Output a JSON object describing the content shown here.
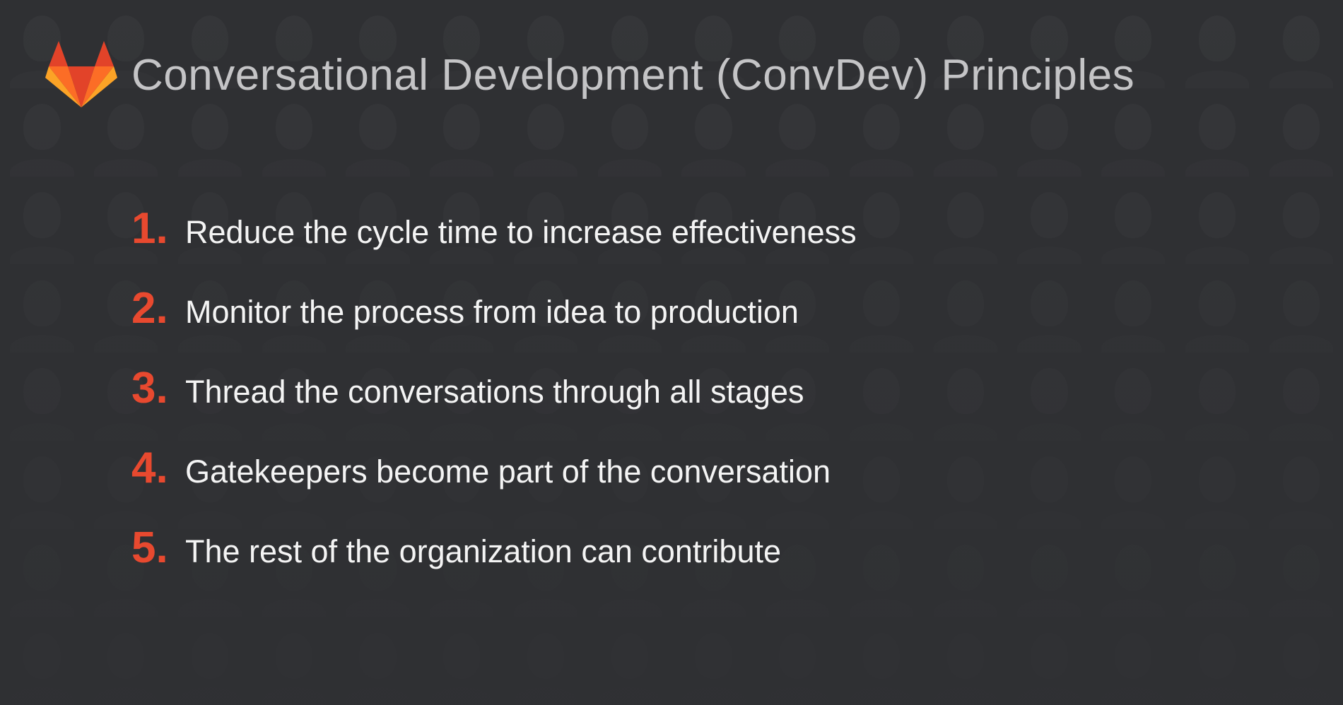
{
  "slide": {
    "title": "Conversational Development (ConvDev) Principles",
    "logo_icon": "gitlab-tanuki-logo",
    "colors": {
      "background": "#2f3033",
      "title": "#c4c4c6",
      "number_accent": "#e8492f",
      "text": "#f4f4f4",
      "logo_dark": "#e24329",
      "logo_mid": "#fc6d26",
      "logo_light": "#fca326"
    },
    "principles": [
      {
        "number": "1.",
        "text": "Reduce the cycle time to increase effectiveness"
      },
      {
        "number": "2.",
        "text": "Monitor the process from idea to production"
      },
      {
        "number": "3.",
        "text": "Thread the conversations through all stages"
      },
      {
        "number": "4.",
        "text": "Gatekeepers become part of the conversation"
      },
      {
        "number": "5.",
        "text": "The rest of the organization can contribute"
      }
    ]
  }
}
